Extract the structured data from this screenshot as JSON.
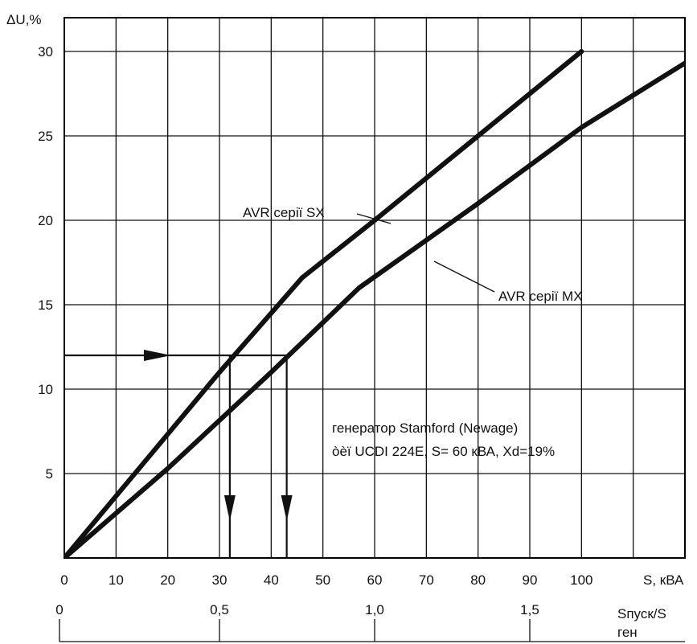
{
  "chart_data": {
    "type": "line",
    "title": "",
    "ylabel": "ΔU,%",
    "xlabel": "S, кВА",
    "xlim": [
      0,
      120
    ],
    "ylim": [
      0,
      32
    ],
    "x_ticks": [
      "0",
      "10",
      "20",
      "30",
      "40",
      "50",
      "60",
      "70",
      "80",
      "90",
      "100"
    ],
    "y_ticks": [
      "5",
      "10",
      "15",
      "20",
      "25",
      "30"
    ],
    "secondary_axis": {
      "label_line1": "Sпуск/S",
      "label_line2": "ген",
      "ticks": [
        {
          "label": "0",
          "at_s": 0
        },
        {
          "label": "0,5",
          "at_s": 30
        },
        {
          "label": "1,0",
          "at_s": 60
        },
        {
          "label": "1,5",
          "at_s": 90
        }
      ]
    },
    "series": [
      {
        "name": "AVR серії SX",
        "points": [
          [
            0,
            0
          ],
          [
            15,
            5.5
          ],
          [
            30,
            11
          ],
          [
            46,
            16.6
          ],
          [
            60,
            20
          ],
          [
            80,
            25
          ],
          [
            100,
            30
          ]
        ]
      },
      {
        "name": "AVR серії MX",
        "points": [
          [
            0,
            0
          ],
          [
            20,
            5.3
          ],
          [
            40,
            11
          ],
          [
            57,
            16
          ],
          [
            80,
            21
          ],
          [
            100,
            25.5
          ],
          [
            121,
            29.5
          ]
        ]
      }
    ],
    "annotations": {
      "note_line1": "генератор Stamford (Newage)",
      "note_line2": "òèï UCDI 224E, S= 60 кВА, Xd=19%",
      "horizontal_arrow_y": 12,
      "drop_arrows_x": [
        32,
        43
      ]
    },
    "grid": true
  }
}
